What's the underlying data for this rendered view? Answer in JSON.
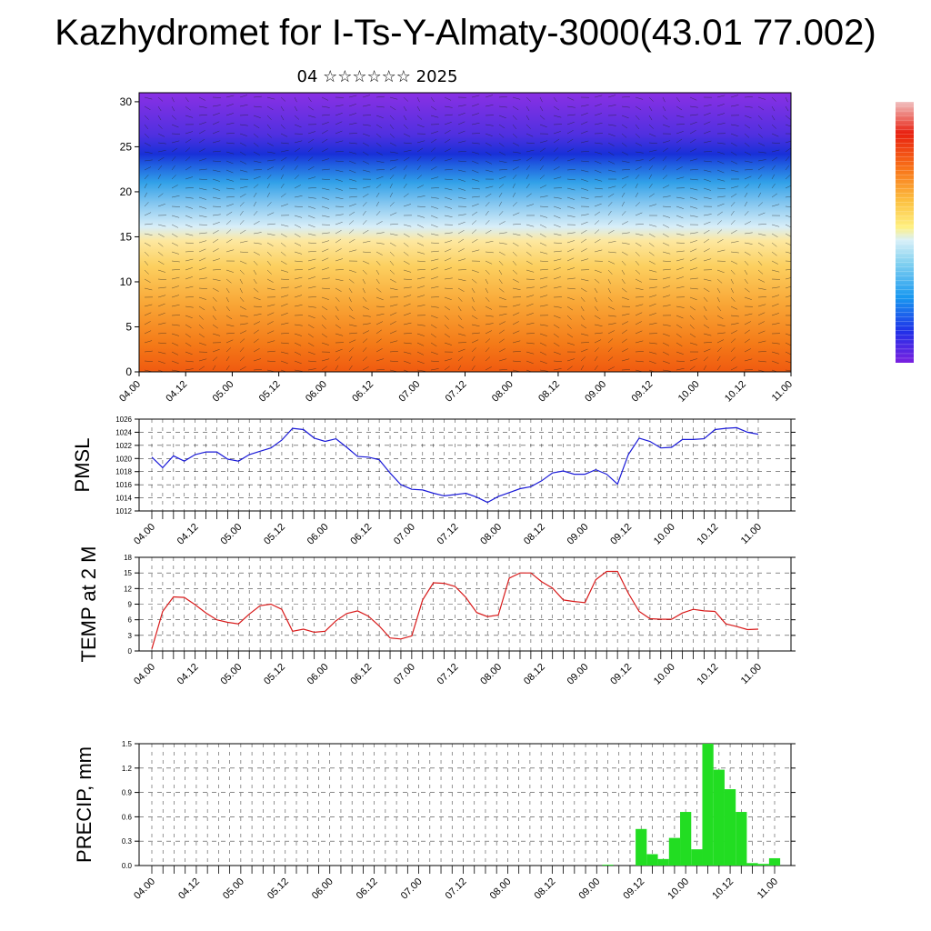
{
  "header": {
    "title": "Kazhydromet for I-Ts-Y-Almaty-3000(43.01 77.002)",
    "subtitle": "04 ☆☆☆☆☆☆ 2025"
  },
  "chart_data": [
    {
      "type": "heatmap",
      "title": "",
      "xlabel": "",
      "ylabel": "",
      "x_ticks": [
        "04.00",
        "04.12",
        "05.00",
        "05.12",
        "06.00",
        "06.12",
        "07.00",
        "07.12",
        "08.00",
        "08.12",
        "09.00",
        "09.12",
        "10.00",
        "10.12",
        "11.00"
      ],
      "y_ticks": [
        0,
        5,
        10,
        15,
        20,
        25,
        30
      ],
      "ylim": [
        0,
        31
      ],
      "overlay": "wind barbs",
      "colorbar": "violet-blue-cyan-yellow-orange-red",
      "description_bands": [
        {
          "level_from": 0,
          "level_to": 4,
          "color": "#f06010"
        },
        {
          "level_from": 4,
          "level_to": 10,
          "color": "#f8a030"
        },
        {
          "level_from": 10,
          "level_to": 15,
          "color": "#fce080"
        },
        {
          "level_from": 15,
          "level_to": 19,
          "color": "#b8e0f0"
        },
        {
          "level_from": 19,
          "level_to": 23,
          "color": "#30a8e8"
        },
        {
          "level_from": 23,
          "level_to": 26,
          "color": "#2040e0"
        },
        {
          "level_from": 26,
          "level_to": 31,
          "color": "#8030e0"
        }
      ]
    },
    {
      "type": "line",
      "ylabel": "PMSL",
      "ylim": [
        1012,
        1026
      ],
      "y_ticks": [
        1012,
        1014,
        1016,
        1018,
        1020,
        1022,
        1024,
        1026
      ],
      "x_ticks": [
        "04.00",
        "04.12",
        "05.00",
        "05.12",
        "06.00",
        "06.12",
        "07.00",
        "07.12",
        "08.00",
        "08.12",
        "09.00",
        "09.12",
        "10.00",
        "10.12",
        "11.00"
      ],
      "color": "#1a1ad8",
      "values": [
        1020.2,
        1018.6,
        1020.4,
        1019.6,
        1020.6,
        1021.0,
        1021.0,
        1019.9,
        1019.6,
        1020.6,
        1021.1,
        1021.6,
        1022.8,
        1024.6,
        1024.4,
        1023.1,
        1022.6,
        1023.0,
        1021.7,
        1020.3,
        1020.2,
        1019.8,
        1017.8,
        1016.0,
        1015.3,
        1015.2,
        1014.7,
        1014.3,
        1014.5,
        1014.7,
        1014.1,
        1013.3,
        1014.2,
        1014.8,
        1015.4,
        1015.7,
        1016.6,
        1017.8,
        1018.1,
        1017.6,
        1017.6,
        1018.3,
        1017.6,
        1016.1,
        1020.6,
        1023.1,
        1022.6,
        1021.6,
        1021.7,
        1022.9,
        1022.9,
        1023.0,
        1024.4,
        1024.6,
        1024.7,
        1024.0,
        1023.7
      ]
    },
    {
      "type": "line",
      "ylabel": "TEMP at 2 M",
      "ylim": [
        0,
        18
      ],
      "y_ticks": [
        0,
        3,
        6,
        9,
        12,
        15,
        18
      ],
      "x_ticks": [
        "04.00",
        "04.12",
        "05.00",
        "05.12",
        "06.00",
        "06.12",
        "07.00",
        "07.12",
        "08.00",
        "08.12",
        "09.00",
        "09.12",
        "10.00",
        "10.12",
        "11.00"
      ],
      "color": "#d81a1a",
      "values": [
        0.4,
        7.6,
        10.4,
        10.3,
        8.9,
        7.3,
        6.0,
        5.5,
        5.2,
        7.1,
        8.7,
        9.0,
        8.0,
        3.8,
        4.2,
        3.6,
        3.8,
        5.8,
        7.2,
        7.7,
        6.7,
        4.8,
        2.5,
        2.3,
        2.9,
        9.8,
        13.1,
        13.0,
        12.4,
        10.3,
        7.4,
        6.6,
        6.9,
        14.0,
        15.0,
        15.0,
        13.3,
        12.1,
        9.8,
        9.5,
        9.3,
        13.7,
        15.3,
        15.3,
        11.1,
        7.6,
        6.2,
        6.1,
        6.1,
        7.3,
        8.0,
        7.7,
        7.6,
        5.2,
        4.7,
        4.1,
        4.2
      ]
    },
    {
      "type": "bar",
      "ylabel": "PRECIP, mm",
      "ylim": [
        0,
        1.5
      ],
      "y_ticks": [
        "0.0",
        "0.3",
        "0.6",
        "0.9",
        "1.2",
        "1.5"
      ],
      "x_ticks": [
        "04.00",
        "04.12",
        "05.00",
        "05.12",
        "06.00",
        "06.12",
        "07.00",
        "07.12",
        "08.00",
        "08.12",
        "09.00",
        "09.12",
        "10.00",
        "10.12",
        "11.00"
      ],
      "color": "#22dd22",
      "values": [
        0,
        0,
        0,
        0,
        0,
        0,
        0,
        0,
        0,
        0,
        0,
        0,
        0,
        0,
        0,
        0,
        0,
        0,
        0,
        0,
        0,
        0,
        0,
        0,
        0,
        0,
        0,
        0,
        0,
        0,
        0,
        0,
        0,
        0,
        0,
        0,
        0,
        0,
        0,
        0,
        0,
        0.01,
        0,
        0,
        0.45,
        0.14,
        0.08,
        0.34,
        0.66,
        0.2,
        1.5,
        1.18,
        0.94,
        0.66,
        0.03,
        0.02,
        0.09
      ]
    }
  ]
}
